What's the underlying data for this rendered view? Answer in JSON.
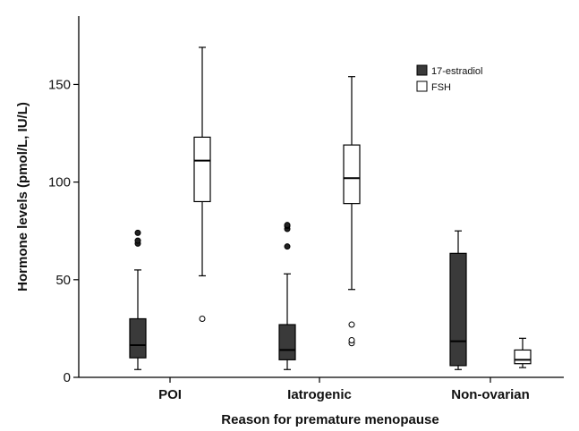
{
  "chart_data": {
    "type": "box",
    "xlabel": "Reason for premature menopause",
    "ylabel": "Hormone levels (pmol/L, IU/L)",
    "ylim": [
      0,
      185
    ],
    "yticks": [
      0,
      50,
      100,
      150
    ],
    "categories": [
      "POI",
      "Iatrogenic",
      "Non-ovarian"
    ],
    "legend_position": "top-right",
    "series": [
      {
        "name": "17-estradiol",
        "color": "#3a3a3a",
        "boxes": [
          {
            "whisker_low": 4,
            "q1": 10,
            "median": 16.5,
            "q3": 30,
            "whisker_high": 55,
            "outliers": [
              68.5,
              70,
              74
            ]
          },
          {
            "whisker_low": 4,
            "q1": 9,
            "median": 14,
            "q3": 27,
            "whisker_high": 53,
            "outliers": [
              67,
              76,
              77.5,
              78
            ]
          },
          {
            "whisker_low": 4,
            "q1": 6,
            "median": 18.5,
            "q3": 63.5,
            "whisker_high": 75,
            "outliers": []
          }
        ]
      },
      {
        "name": "FSH",
        "color": "#ffffff",
        "boxes": [
          {
            "whisker_low": 52,
            "q1": 90,
            "median": 111,
            "q3": 123,
            "whisker_high": 169,
            "outliers": [
              30
            ]
          },
          {
            "whisker_low": 45,
            "q1": 89,
            "median": 102,
            "q3": 119,
            "whisker_high": 154,
            "outliers": [
              17.5,
              19,
              27
            ]
          },
          {
            "whisker_low": 5,
            "q1": 7,
            "median": 9,
            "q3": 14,
            "whisker_high": 20,
            "outliers": []
          }
        ]
      }
    ]
  }
}
